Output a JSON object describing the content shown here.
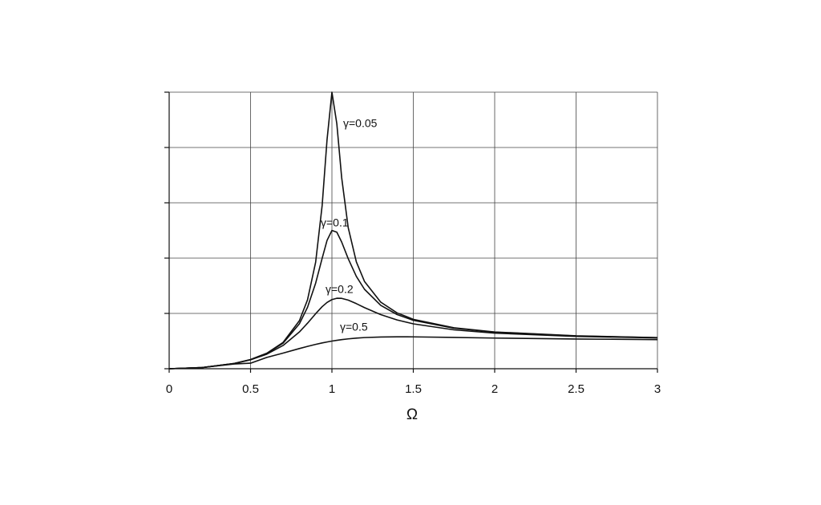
{
  "chart_data": {
    "type": "line",
    "x_label": "Ω",
    "xlim": [
      0,
      3
    ],
    "xticks": [
      0,
      0.5,
      1,
      1.5,
      2,
      2.5,
      3
    ],
    "ylim": [
      0,
      10
    ],
    "yticks": [
      0,
      2,
      4,
      6,
      8,
      10
    ],
    "ytick_labels_shown": false,
    "grid": true,
    "x": [
      0,
      0.2,
      0.4,
      0.5,
      0.6,
      0.7,
      0.8,
      0.85,
      0.9,
      0.94,
      0.97,
      1.0,
      1.03,
      1.06,
      1.1,
      1.15,
      1.2,
      1.3,
      1.4,
      1.5,
      1.75,
      2,
      2.5,
      3
    ],
    "series": [
      {
        "name": "γ=0.05",
        "color": "#111111",
        "values": [
          0,
          0.0417,
          0.19,
          0.333,
          0.56,
          0.952,
          1.735,
          2.49,
          3.853,
          5.906,
          8.283,
          10,
          8.863,
          6.902,
          5.103,
          3.863,
          3.157,
          2.407,
          2.02,
          1.787,
          1.48,
          1.33,
          1.189,
          1.124
        ]
      },
      {
        "name": "γ=0.1",
        "color": "#111111",
        "values": [
          0,
          0.0416,
          0.19,
          0.33,
          0.553,
          0.926,
          1.624,
          2.22,
          3.095,
          3.996,
          4.64,
          5,
          4.939,
          4.579,
          3.979,
          3.339,
          2.873,
          2.292,
          1.96,
          1.75,
          1.464,
          1.322,
          1.185,
          1.122
        ]
      },
      {
        "name": "γ=0.2",
        "color": "#111111",
        "values": [
          0,
          0.0415,
          0.187,
          0.322,
          0.527,
          0.842,
          1.329,
          1.646,
          1.99,
          2.245,
          2.397,
          2.5,
          2.548,
          2.544,
          2.482,
          2.354,
          2.211,
          1.956,
          1.764,
          1.623,
          1.406,
          1.288,
          1.169,
          1.113
        ]
      },
      {
        "name": "γ=0.5",
        "color": "#111111",
        "values": [
          0,
          0.0408,
          0.172,
          0.2,
          0.41,
          0.566,
          0.73,
          0.808,
          0.881,
          0.933,
          0.968,
          1,
          1.028,
          1.053,
          1.08,
          1.107,
          1.127,
          1.148,
          1.155,
          1.152,
          1.132,
          1.109,
          1.075,
          1.053
        ]
      }
    ]
  }
}
